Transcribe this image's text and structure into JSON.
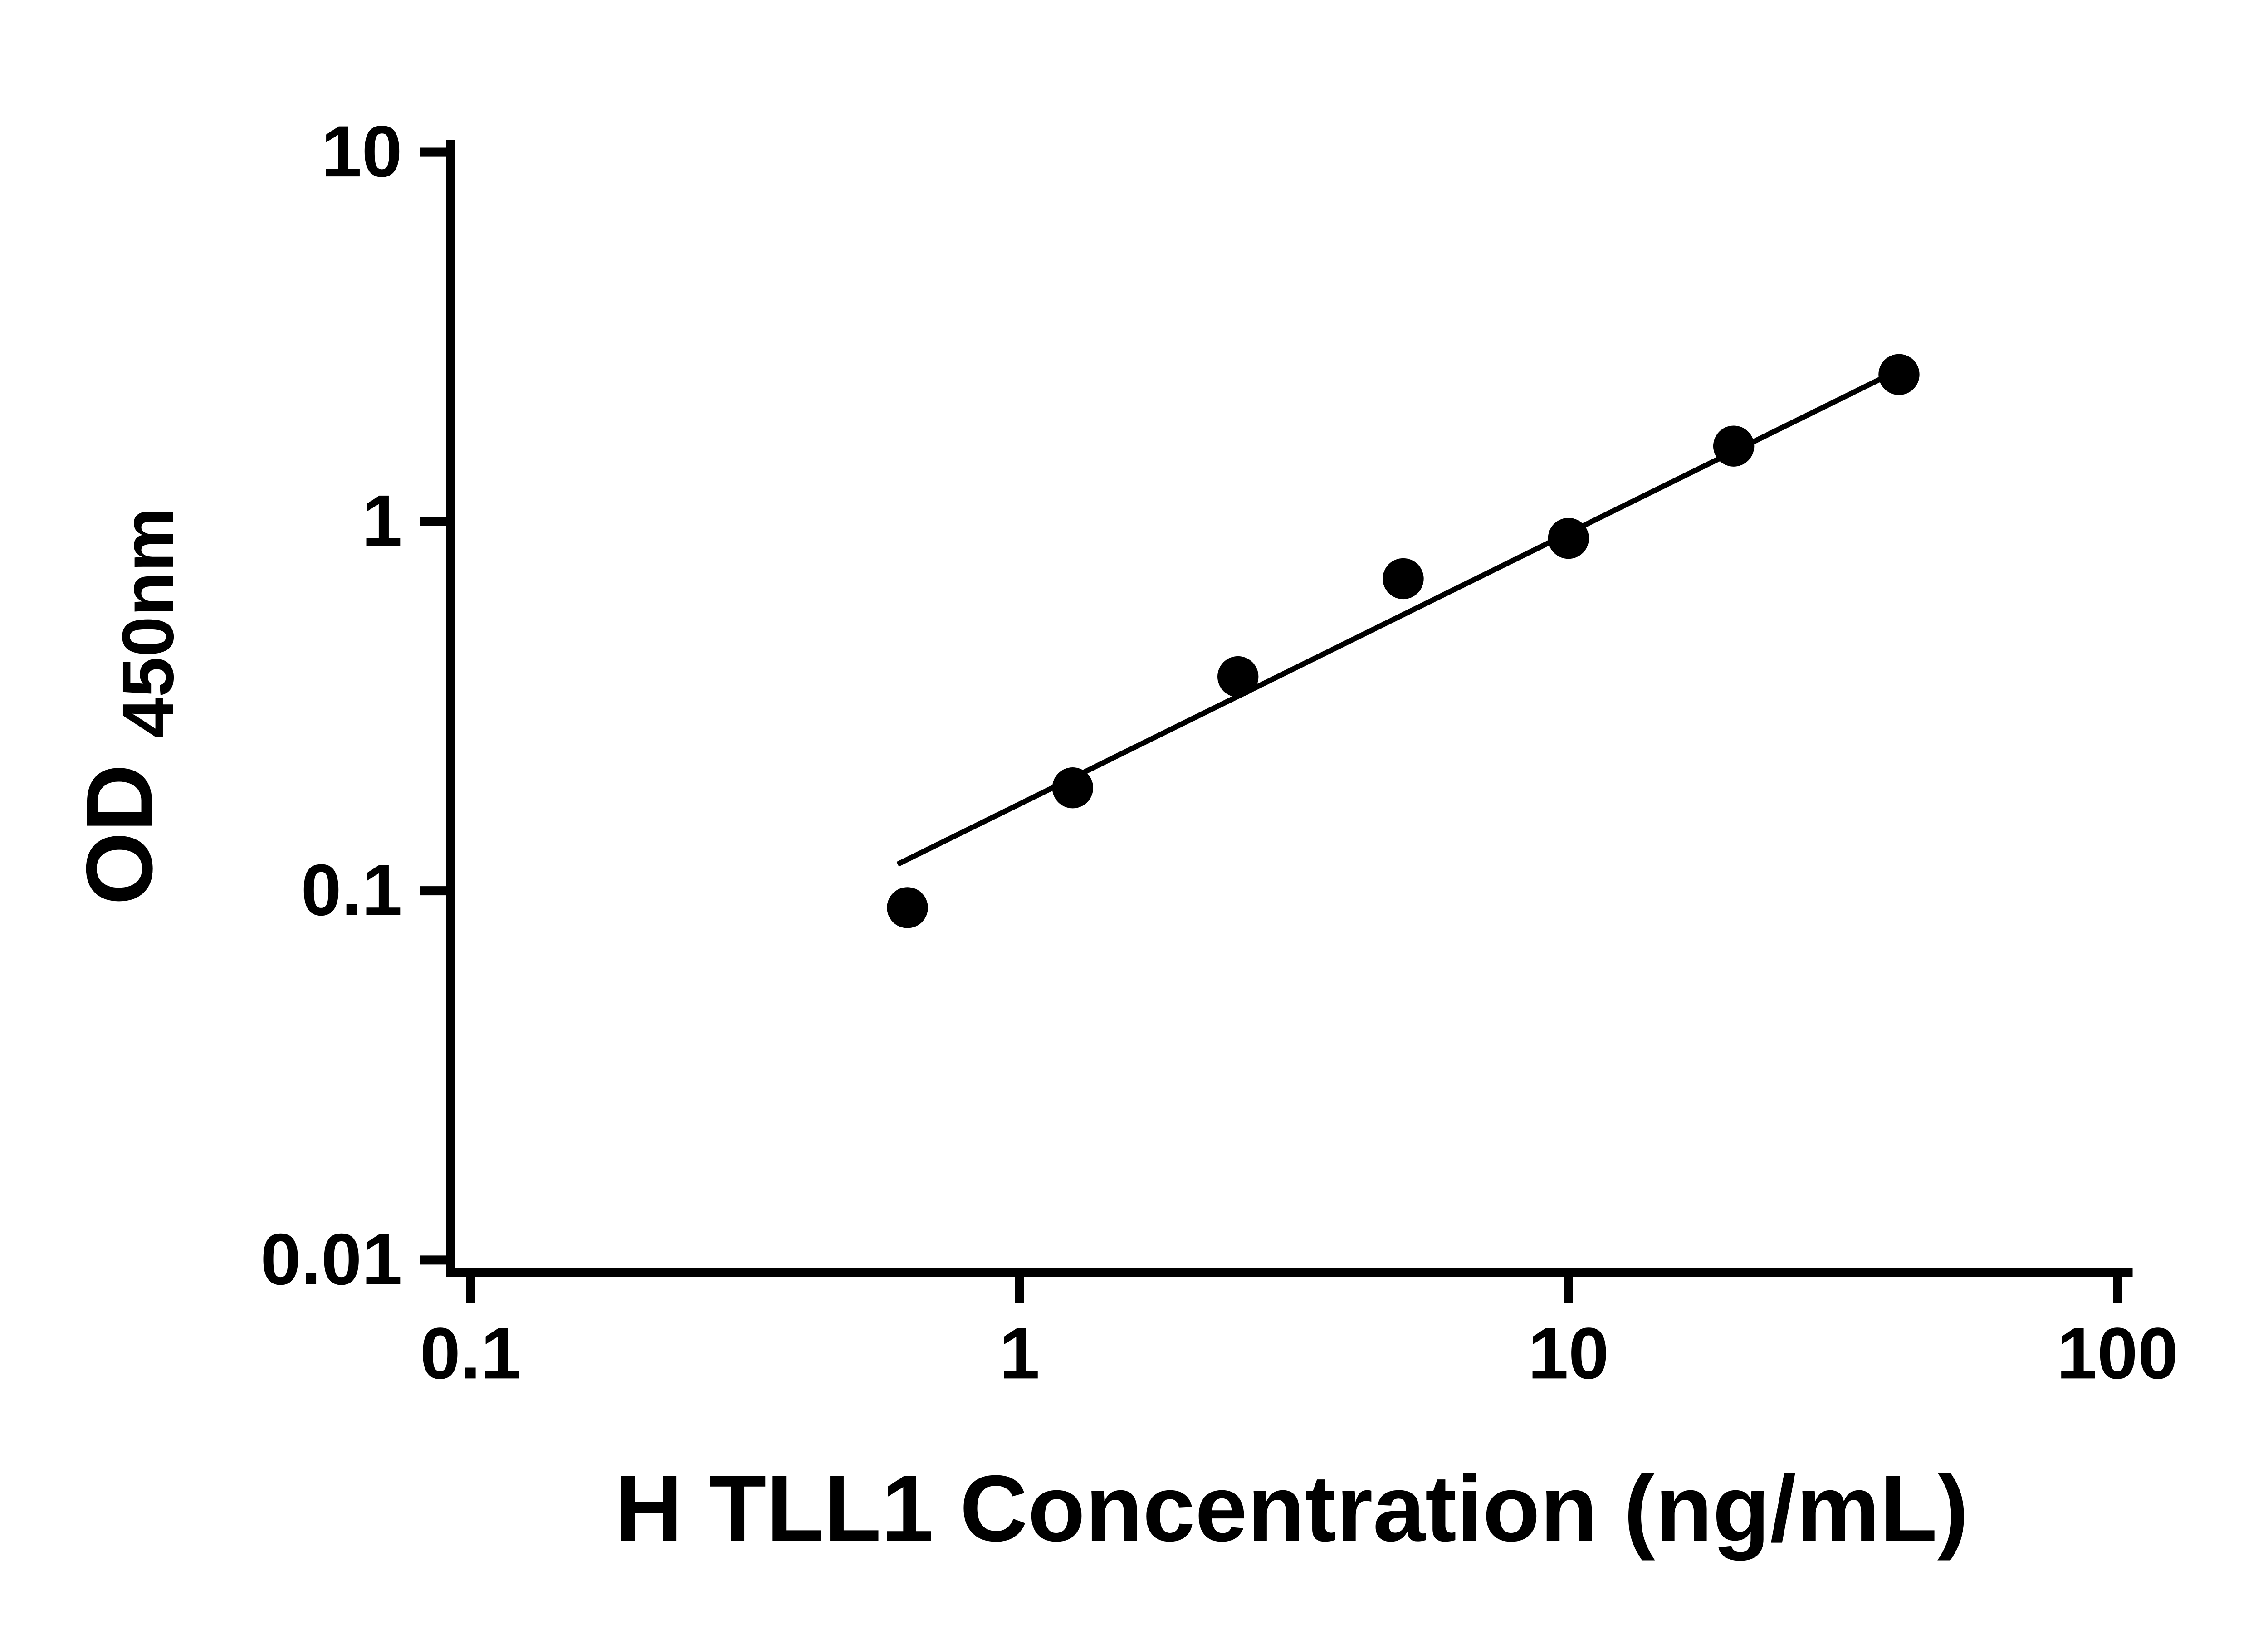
{
  "chart_data": {
    "type": "scatter",
    "title": "",
    "xlabel": "H TLL1 Concentration (ng/mL)",
    "ylabel_main": "OD",
    "ylabel_sub": "450nm",
    "x_scale": "log",
    "y_scale": "log",
    "xlim": [
      0.1,
      100
    ],
    "ylim": [
      0.01,
      10
    ],
    "grid": "off",
    "legend": "none",
    "x_ticks": {
      "values": [
        0.1,
        1,
        10,
        100
      ],
      "labels": [
        "0.1",
        "1",
        "10",
        "100"
      ]
    },
    "y_ticks": {
      "values": [
        0.01,
        0.1,
        1,
        10
      ],
      "labels": [
        "0.01",
        "0.1",
        "1",
        "10"
      ]
    },
    "series": [
      {
        "name": "standard-curve",
        "marker": "filled-circle",
        "marker_color": "#000000",
        "points": [
          {
            "x": 0.625,
            "y": 0.09
          },
          {
            "x": 1.25,
            "y": 0.19
          },
          {
            "x": 2.5,
            "y": 0.38
          },
          {
            "x": 5,
            "y": 0.7
          },
          {
            "x": 10,
            "y": 0.9
          },
          {
            "x": 20,
            "y": 1.6
          },
          {
            "x": 40,
            "y": 2.5
          }
        ]
      }
    ],
    "trend_line": {
      "x1": 0.6,
      "y1": 0.118,
      "x2": 41,
      "y2": 2.62,
      "color": "#000000"
    }
  }
}
